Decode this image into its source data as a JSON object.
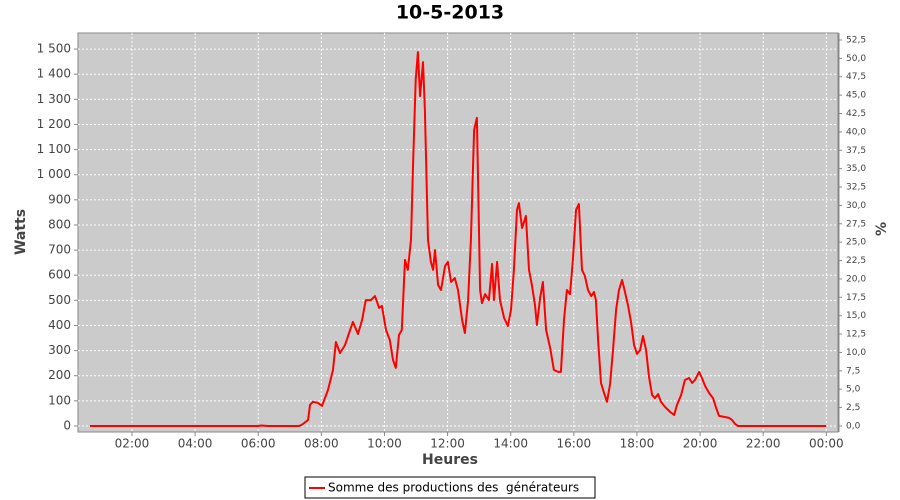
{
  "chart_data": {
    "type": "line",
    "title": "10-5-2013",
    "x_label": "Heures",
    "y_label": "Watts",
    "y2_label": "%",
    "x": [
      0.67,
      6.0,
      6.1,
      6.3,
      7.3,
      7.42,
      7.58,
      7.64,
      7.73,
      7.89,
      8.02,
      8.21,
      8.37,
      8.46,
      8.59,
      8.75,
      8.91,
      9.0,
      9.16,
      9.29,
      9.41,
      9.57,
      9.7,
      9.83,
      9.92,
      10.05,
      10.17,
      10.27,
      10.36,
      10.46,
      10.55,
      10.65,
      10.74,
      10.84,
      10.9,
      10.99,
      11.06,
      11.13,
      11.22,
      11.28,
      11.38,
      11.47,
      11.54,
      11.6,
      11.7,
      11.79,
      11.92,
      12.01,
      12.11,
      12.23,
      12.33,
      12.46,
      12.55,
      12.65,
      12.74,
      12.84,
      12.93,
      13.03,
      13.09,
      13.19,
      13.31,
      13.41,
      13.47,
      13.57,
      13.66,
      13.79,
      13.91,
      14.01,
      14.1,
      14.2,
      14.26,
      14.36,
      14.48,
      14.58,
      14.67,
      14.77,
      14.83,
      14.93,
      15.02,
      15.12,
      15.25,
      15.37,
      15.5,
      15.59,
      15.69,
      15.78,
      15.88,
      15.97,
      16.07,
      16.16,
      16.26,
      16.35,
      16.45,
      16.55,
      16.64,
      16.7,
      16.77,
      16.86,
      16.96,
      17.05,
      17.15,
      17.24,
      17.34,
      17.43,
      17.53,
      17.62,
      17.72,
      17.81,
      17.91,
      18.0,
      18.1,
      18.19,
      18.29,
      18.38,
      18.48,
      18.57,
      18.67,
      18.76,
      18.89,
      19.05,
      19.18,
      19.27,
      19.4,
      19.52,
      19.65,
      19.75,
      19.84,
      19.97,
      20.06,
      20.16,
      20.29,
      20.41,
      20.51,
      20.6,
      20.76,
      20.92,
      21.01,
      21.11,
      21.2,
      24.0
    ],
    "series": [
      {
        "name": "Somme des productions des  générateurs",
        "color": "#ff0000",
        "values": [
          0,
          0,
          2,
          0,
          0,
          8,
          24,
          84,
          96,
          92,
          80,
          143,
          223,
          334,
          290,
          322,
          382,
          414,
          366,
          422,
          501,
          501,
          517,
          470,
          478,
          382,
          342,
          263,
          231,
          362,
          382,
          661,
          621,
          740,
          1019,
          1377,
          1488,
          1313,
          1448,
          1257,
          740,
          653,
          621,
          700,
          561,
          541,
          637,
          653,
          573,
          589,
          541,
          422,
          370,
          501,
          740,
          1178,
          1226,
          541,
          489,
          525,
          501,
          645,
          501,
          653,
          501,
          430,
          398,
          462,
          621,
          860,
          887,
          788,
          836,
          621,
          561,
          481,
          402,
          509,
          573,
          382,
          310,
          223,
          215,
          215,
          422,
          541,
          525,
          661,
          860,
          883,
          621,
          597,
          541,
          517,
          533,
          501,
          342,
          171,
          131,
          96,
          167,
          302,
          462,
          541,
          581,
          533,
          478,
          414,
          322,
          287,
          302,
          358,
          302,
          199,
          123,
          111,
          127,
          96,
          76,
          56,
          44,
          84,
          123,
          183,
          191,
          171,
          183,
          215,
          191,
          159,
          131,
          111,
          72,
          40,
          36,
          32,
          24,
          8,
          0,
          0
        ]
      }
    ],
    "xlim": [
      0.29,
      24.37
    ],
    "xticks": [
      {
        "value": 2,
        "label": "02:00"
      },
      {
        "value": 4,
        "label": "04:00"
      },
      {
        "value": 6,
        "label": "06:00"
      },
      {
        "value": 8,
        "label": "08:00"
      },
      {
        "value": 10,
        "label": "10:00"
      },
      {
        "value": 12,
        "label": "12:00"
      },
      {
        "value": 14,
        "label": "14:00"
      },
      {
        "value": 16,
        "label": "16:00"
      },
      {
        "value": 18,
        "label": "18:00"
      },
      {
        "value": 20,
        "label": "20:00"
      },
      {
        "value": 22,
        "label": "22:00"
      },
      {
        "value": 24,
        "label": "00:00"
      }
    ],
    "ylim": [
      -24,
      1564
    ],
    "yticks": [
      0,
      100,
      200,
      300,
      400,
      500,
      600,
      700,
      800,
      900,
      {
        "value": 1000,
        "label": "1 000"
      },
      {
        "value": 1100,
        "label": "1 100"
      },
      {
        "value": 1200,
        "label": "1 200"
      },
      {
        "value": 1300,
        "label": "1 300"
      },
      {
        "value": 1400,
        "label": "1 400"
      },
      {
        "value": 1500,
        "label": "1 500"
      }
    ],
    "y2lim": [
      -0.82,
      53.45
    ],
    "y2ticks": [
      {
        "value": 0,
        "label": "0,0"
      },
      {
        "value": 2.5,
        "label": "2,5"
      },
      {
        "value": 5,
        "label": "5,0"
      },
      {
        "value": 7.5,
        "label": "7,5"
      },
      {
        "value": 10,
        "label": "10,0"
      },
      {
        "value": 12.5,
        "label": "12,5"
      },
      {
        "value": 15,
        "label": "15,0"
      },
      {
        "value": 17.5,
        "label": "17,5"
      },
      {
        "value": 20,
        "label": "20,0"
      },
      {
        "value": 22.5,
        "label": "22,5"
      },
      {
        "value": 25,
        "label": "25,0"
      },
      {
        "value": 27.5,
        "label": "27,5"
      },
      {
        "value": 30,
        "label": "30,0"
      },
      {
        "value": 32.5,
        "label": "32,5"
      },
      {
        "value": 35,
        "label": "35,0"
      },
      {
        "value": 37.5,
        "label": "37,5"
      },
      {
        "value": 40,
        "label": "40,0"
      },
      {
        "value": 42.5,
        "label": "42,5"
      },
      {
        "value": 45,
        "label": "45,0"
      },
      {
        "value": 47.5,
        "label": "47,5"
      },
      {
        "value": 50,
        "label": "50,0"
      },
      {
        "value": 52.5,
        "label": "52,5"
      }
    ],
    "grid": true
  }
}
